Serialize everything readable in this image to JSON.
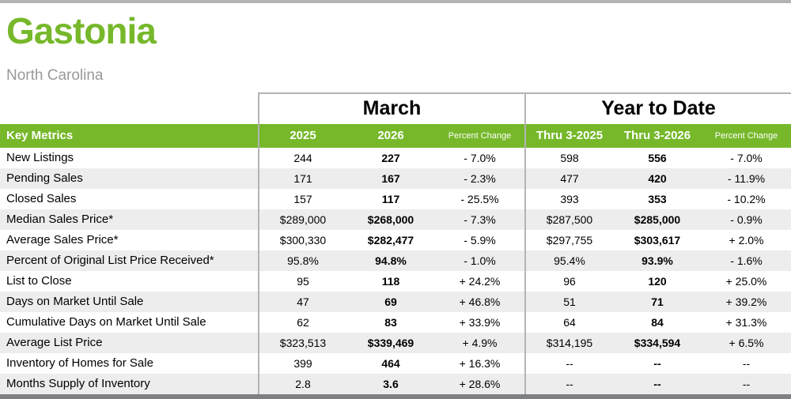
{
  "page": {
    "title": "Gastonia",
    "subtitle": "North Carolina"
  },
  "colors": {
    "accent_green": "#76b82a",
    "subtitle_gray": "#97999b",
    "row_alt_gray": "#ededee",
    "divider_gray": "#b2b4b6",
    "bottom_bar_gray": "#7e8083"
  },
  "table": {
    "group_headers": [
      {
        "label": "March"
      },
      {
        "label": "Year to Date"
      }
    ],
    "column_headers": {
      "key_metrics": "Key Metrics",
      "march": [
        "2025",
        "2026",
        "Percent Change"
      ],
      "ytd": [
        "Thru 3-2025",
        "Thru 3-2026",
        "Percent Change"
      ]
    },
    "rows": [
      {
        "metric": "New Listings",
        "m2025": "244",
        "m2026": "227",
        "mpct": "- 7.0%",
        "y2025": "598",
        "y2026": "556",
        "ypct": "- 7.0%"
      },
      {
        "metric": "Pending Sales",
        "m2025": "171",
        "m2026": "167",
        "mpct": "- 2.3%",
        "y2025": "477",
        "y2026": "420",
        "ypct": "- 11.9%"
      },
      {
        "metric": "Closed Sales",
        "m2025": "157",
        "m2026": "117",
        "mpct": "- 25.5%",
        "y2025": "393",
        "y2026": "353",
        "ypct": "- 10.2%"
      },
      {
        "metric": "Median Sales Price*",
        "m2025": "$289,000",
        "m2026": "$268,000",
        "mpct": "- 7.3%",
        "y2025": "$287,500",
        "y2026": "$285,000",
        "ypct": "- 0.9%"
      },
      {
        "metric": "Average Sales Price*",
        "m2025": "$300,330",
        "m2026": "$282,477",
        "mpct": "- 5.9%",
        "y2025": "$297,755",
        "y2026": "$303,617",
        "ypct": "+ 2.0%"
      },
      {
        "metric": "Percent of Original List Price Received*",
        "m2025": "95.8%",
        "m2026": "94.8%",
        "mpct": "- 1.0%",
        "y2025": "95.4%",
        "y2026": "93.9%",
        "ypct": "- 1.6%"
      },
      {
        "metric": "List to Close",
        "m2025": "95",
        "m2026": "118",
        "mpct": "+ 24.2%",
        "y2025": "96",
        "y2026": "120",
        "ypct": "+ 25.0%"
      },
      {
        "metric": "Days on Market Until Sale",
        "m2025": "47",
        "m2026": "69",
        "mpct": "+ 46.8%",
        "y2025": "51",
        "y2026": "71",
        "ypct": "+ 39.2%"
      },
      {
        "metric": "Cumulative Days on Market Until Sale",
        "m2025": "62",
        "m2026": "83",
        "mpct": "+ 33.9%",
        "y2025": "64",
        "y2026": "84",
        "ypct": "+ 31.3%"
      },
      {
        "metric": "Average List Price",
        "m2025": "$323,513",
        "m2026": "$339,469",
        "mpct": "+ 4.9%",
        "y2025": "$314,195",
        "y2026": "$334,594",
        "ypct": "+ 6.5%"
      },
      {
        "metric": "Inventory of Homes for Sale",
        "m2025": "399",
        "m2026": "464",
        "mpct": "+ 16.3%",
        "y2025": "--",
        "y2026": "--",
        "ypct": "--"
      },
      {
        "metric": "Months Supply of Inventory",
        "m2025": "2.8",
        "m2026": "3.6",
        "mpct": "+ 28.6%",
        "y2025": "--",
        "y2026": "--",
        "ypct": "--"
      }
    ]
  }
}
